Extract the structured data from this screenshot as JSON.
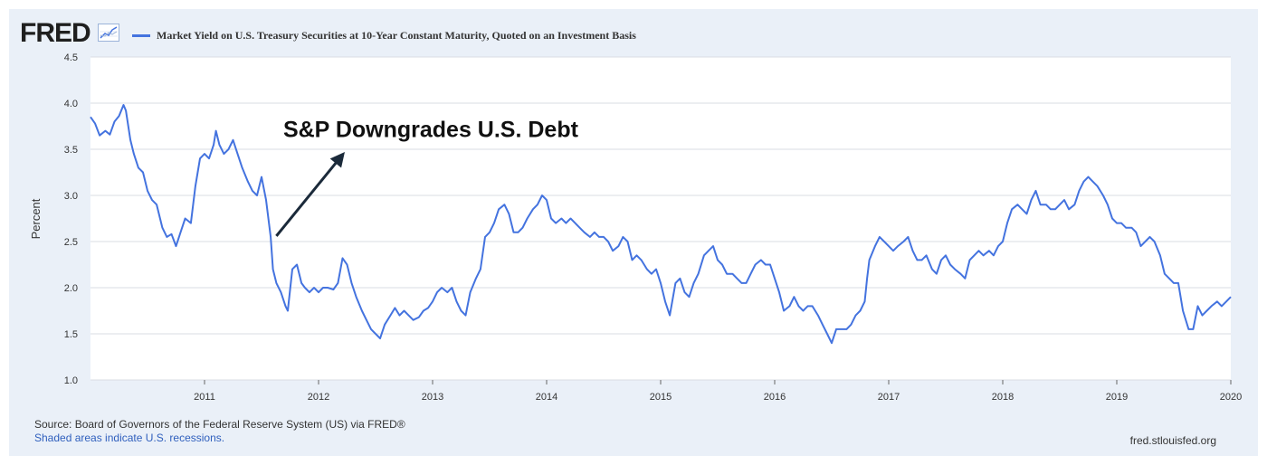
{
  "header": {
    "logo_text": "FRED",
    "logo_icon": "line-chart-icon"
  },
  "colors": {
    "series": "#4473df",
    "plot_background": "#ffffff",
    "frame_background": "#eaf0f8",
    "gridline": "#d9dde3",
    "annotation": "#1b2a3a"
  },
  "footer": {
    "source": "Source: Board of Governors of the Federal Reserve System (US) via FRED®",
    "recession_note": "Shaded areas indicate U.S. recessions.",
    "url": "fred.stlouisfed.org"
  },
  "chart_data": {
    "type": "line",
    "ylabel": "Percent",
    "xlim": [
      2010.0,
      2020.0
    ],
    "ylim": [
      1.0,
      4.5
    ],
    "grid": true,
    "legend_position": "top-left",
    "x_ticks": [
      "2011",
      "2012",
      "2013",
      "2014",
      "2015",
      "2016",
      "2017",
      "2018",
      "2019",
      "2020"
    ],
    "y_ticks": [
      "1.0",
      "1.5",
      "2.0",
      "2.5",
      "3.0",
      "3.5",
      "4.0",
      "4.5"
    ],
    "series": [
      {
        "name": "Market Yield on U.S. Treasury Securities at 10-Year Constant Maturity, Quoted on an Investment Basis",
        "color": "#4473df",
        "points": [
          [
            2010.0,
            3.85
          ],
          [
            2010.04,
            3.78
          ],
          [
            2010.08,
            3.65
          ],
          [
            2010.13,
            3.7
          ],
          [
            2010.17,
            3.66
          ],
          [
            2010.21,
            3.8
          ],
          [
            2010.25,
            3.86
          ],
          [
            2010.29,
            3.98
          ],
          [
            2010.31,
            3.92
          ],
          [
            2010.35,
            3.6
          ],
          [
            2010.38,
            3.45
          ],
          [
            2010.42,
            3.3
          ],
          [
            2010.46,
            3.25
          ],
          [
            2010.5,
            3.05
          ],
          [
            2010.54,
            2.95
          ],
          [
            2010.58,
            2.9
          ],
          [
            2010.63,
            2.65
          ],
          [
            2010.67,
            2.55
          ],
          [
            2010.71,
            2.58
          ],
          [
            2010.75,
            2.45
          ],
          [
            2010.79,
            2.6
          ],
          [
            2010.83,
            2.75
          ],
          [
            2010.88,
            2.7
          ],
          [
            2010.92,
            3.1
          ],
          [
            2010.96,
            3.4
          ],
          [
            2011.0,
            3.45
          ],
          [
            2011.04,
            3.4
          ],
          [
            2011.08,
            3.55
          ],
          [
            2011.1,
            3.7
          ],
          [
            2011.13,
            3.55
          ],
          [
            2011.17,
            3.45
          ],
          [
            2011.21,
            3.5
          ],
          [
            2011.25,
            3.6
          ],
          [
            2011.29,
            3.45
          ],
          [
            2011.33,
            3.3
          ],
          [
            2011.38,
            3.15
          ],
          [
            2011.42,
            3.05
          ],
          [
            2011.46,
            3.0
          ],
          [
            2011.5,
            3.2
          ],
          [
            2011.54,
            2.95
          ],
          [
            2011.58,
            2.55
          ],
          [
            2011.6,
            2.2
          ],
          [
            2011.63,
            2.05
          ],
          [
            2011.67,
            1.95
          ],
          [
            2011.71,
            1.8
          ],
          [
            2011.73,
            1.75
          ],
          [
            2011.77,
            2.2
          ],
          [
            2011.81,
            2.25
          ],
          [
            2011.85,
            2.05
          ],
          [
            2011.88,
            2.0
          ],
          [
            2011.92,
            1.95
          ],
          [
            2011.96,
            2.0
          ],
          [
            2012.0,
            1.95
          ],
          [
            2012.04,
            2.0
          ],
          [
            2012.08,
            2.0
          ],
          [
            2012.13,
            1.98
          ],
          [
            2012.17,
            2.05
          ],
          [
            2012.21,
            2.32
          ],
          [
            2012.25,
            2.25
          ],
          [
            2012.29,
            2.05
          ],
          [
            2012.33,
            1.9
          ],
          [
            2012.38,
            1.75
          ],
          [
            2012.42,
            1.65
          ],
          [
            2012.46,
            1.55
          ],
          [
            2012.5,
            1.5
          ],
          [
            2012.54,
            1.45
          ],
          [
            2012.58,
            1.6
          ],
          [
            2012.63,
            1.7
          ],
          [
            2012.67,
            1.78
          ],
          [
            2012.71,
            1.7
          ],
          [
            2012.75,
            1.75
          ],
          [
            2012.79,
            1.7
          ],
          [
            2012.83,
            1.65
          ],
          [
            2012.88,
            1.68
          ],
          [
            2012.92,
            1.75
          ],
          [
            2012.96,
            1.78
          ],
          [
            2013.0,
            1.85
          ],
          [
            2013.04,
            1.95
          ],
          [
            2013.08,
            2.0
          ],
          [
            2013.13,
            1.95
          ],
          [
            2013.17,
            2.0
          ],
          [
            2013.21,
            1.85
          ],
          [
            2013.25,
            1.75
          ],
          [
            2013.29,
            1.7
          ],
          [
            2013.33,
            1.95
          ],
          [
            2013.38,
            2.1
          ],
          [
            2013.42,
            2.2
          ],
          [
            2013.46,
            2.55
          ],
          [
            2013.5,
            2.6
          ],
          [
            2013.54,
            2.7
          ],
          [
            2013.58,
            2.85
          ],
          [
            2013.63,
            2.9
          ],
          [
            2013.67,
            2.8
          ],
          [
            2013.71,
            2.6
          ],
          [
            2013.75,
            2.6
          ],
          [
            2013.79,
            2.65
          ],
          [
            2013.83,
            2.75
          ],
          [
            2013.88,
            2.85
          ],
          [
            2013.92,
            2.9
          ],
          [
            2013.96,
            3.0
          ],
          [
            2014.0,
            2.95
          ],
          [
            2014.04,
            2.75
          ],
          [
            2014.08,
            2.7
          ],
          [
            2014.13,
            2.75
          ],
          [
            2014.17,
            2.7
          ],
          [
            2014.21,
            2.75
          ],
          [
            2014.25,
            2.7
          ],
          [
            2014.29,
            2.65
          ],
          [
            2014.33,
            2.6
          ],
          [
            2014.38,
            2.55
          ],
          [
            2014.42,
            2.6
          ],
          [
            2014.46,
            2.55
          ],
          [
            2014.5,
            2.55
          ],
          [
            2014.54,
            2.5
          ],
          [
            2014.58,
            2.4
          ],
          [
            2014.63,
            2.45
          ],
          [
            2014.67,
            2.55
          ],
          [
            2014.71,
            2.5
          ],
          [
            2014.75,
            2.3
          ],
          [
            2014.79,
            2.35
          ],
          [
            2014.83,
            2.3
          ],
          [
            2014.88,
            2.2
          ],
          [
            2014.92,
            2.15
          ],
          [
            2014.96,
            2.2
          ],
          [
            2015.0,
            2.05
          ],
          [
            2015.04,
            1.85
          ],
          [
            2015.08,
            1.7
          ],
          [
            2015.13,
            2.05
          ],
          [
            2015.17,
            2.1
          ],
          [
            2015.21,
            1.95
          ],
          [
            2015.25,
            1.9
          ],
          [
            2015.29,
            2.05
          ],
          [
            2015.33,
            2.15
          ],
          [
            2015.38,
            2.35
          ],
          [
            2015.42,
            2.4
          ],
          [
            2015.46,
            2.45
          ],
          [
            2015.5,
            2.3
          ],
          [
            2015.54,
            2.25
          ],
          [
            2015.58,
            2.15
          ],
          [
            2015.63,
            2.15
          ],
          [
            2015.67,
            2.1
          ],
          [
            2015.71,
            2.05
          ],
          [
            2015.75,
            2.05
          ],
          [
            2015.79,
            2.15
          ],
          [
            2015.83,
            2.25
          ],
          [
            2015.88,
            2.3
          ],
          [
            2015.92,
            2.25
          ],
          [
            2015.96,
            2.25
          ],
          [
            2016.0,
            2.1
          ],
          [
            2016.04,
            1.95
          ],
          [
            2016.08,
            1.75
          ],
          [
            2016.13,
            1.8
          ],
          [
            2016.17,
            1.9
          ],
          [
            2016.21,
            1.8
          ],
          [
            2016.25,
            1.75
          ],
          [
            2016.29,
            1.8
          ],
          [
            2016.33,
            1.8
          ],
          [
            2016.38,
            1.7
          ],
          [
            2016.42,
            1.6
          ],
          [
            2016.46,
            1.5
          ],
          [
            2016.5,
            1.4
          ],
          [
            2016.54,
            1.55
          ],
          [
            2016.58,
            1.55
          ],
          [
            2016.63,
            1.55
          ],
          [
            2016.67,
            1.6
          ],
          [
            2016.71,
            1.7
          ],
          [
            2016.75,
            1.75
          ],
          [
            2016.79,
            1.85
          ],
          [
            2016.81,
            2.1
          ],
          [
            2016.83,
            2.3
          ],
          [
            2016.88,
            2.45
          ],
          [
            2016.92,
            2.55
          ],
          [
            2016.96,
            2.5
          ],
          [
            2017.0,
            2.45
          ],
          [
            2017.04,
            2.4
          ],
          [
            2017.08,
            2.45
          ],
          [
            2017.13,
            2.5
          ],
          [
            2017.17,
            2.55
          ],
          [
            2017.21,
            2.4
          ],
          [
            2017.25,
            2.3
          ],
          [
            2017.29,
            2.3
          ],
          [
            2017.33,
            2.35
          ],
          [
            2017.38,
            2.2
          ],
          [
            2017.42,
            2.15
          ],
          [
            2017.46,
            2.3
          ],
          [
            2017.5,
            2.35
          ],
          [
            2017.54,
            2.25
          ],
          [
            2017.58,
            2.2
          ],
          [
            2017.63,
            2.15
          ],
          [
            2017.67,
            2.1
          ],
          [
            2017.71,
            2.3
          ],
          [
            2017.75,
            2.35
          ],
          [
            2017.79,
            2.4
          ],
          [
            2017.83,
            2.35
          ],
          [
            2017.88,
            2.4
          ],
          [
            2017.92,
            2.35
          ],
          [
            2017.96,
            2.45
          ],
          [
            2018.0,
            2.5
          ],
          [
            2018.04,
            2.7
          ],
          [
            2018.08,
            2.85
          ],
          [
            2018.13,
            2.9
          ],
          [
            2018.17,
            2.85
          ],
          [
            2018.21,
            2.8
          ],
          [
            2018.25,
            2.95
          ],
          [
            2018.29,
            3.05
          ],
          [
            2018.33,
            2.9
          ],
          [
            2018.38,
            2.9
          ],
          [
            2018.42,
            2.85
          ],
          [
            2018.46,
            2.85
          ],
          [
            2018.5,
            2.9
          ],
          [
            2018.54,
            2.95
          ],
          [
            2018.58,
            2.85
          ],
          [
            2018.63,
            2.9
          ],
          [
            2018.67,
            3.05
          ],
          [
            2018.71,
            3.15
          ],
          [
            2018.75,
            3.2
          ],
          [
            2018.79,
            3.15
          ],
          [
            2018.83,
            3.1
          ],
          [
            2018.88,
            3.0
          ],
          [
            2018.92,
            2.9
          ],
          [
            2018.96,
            2.75
          ],
          [
            2019.0,
            2.7
          ],
          [
            2019.04,
            2.7
          ],
          [
            2019.08,
            2.65
          ],
          [
            2019.13,
            2.65
          ],
          [
            2019.17,
            2.6
          ],
          [
            2019.21,
            2.45
          ],
          [
            2019.25,
            2.5
          ],
          [
            2019.29,
            2.55
          ],
          [
            2019.33,
            2.5
          ],
          [
            2019.38,
            2.35
          ],
          [
            2019.42,
            2.15
          ],
          [
            2019.46,
            2.1
          ],
          [
            2019.5,
            2.05
          ],
          [
            2019.54,
            2.05
          ],
          [
            2019.58,
            1.75
          ],
          [
            2019.63,
            1.55
          ],
          [
            2019.67,
            1.55
          ],
          [
            2019.71,
            1.8
          ],
          [
            2019.75,
            1.7
          ],
          [
            2019.79,
            1.75
          ],
          [
            2019.83,
            1.8
          ],
          [
            2019.88,
            1.85
          ],
          [
            2019.92,
            1.8
          ],
          [
            2019.96,
            1.85
          ],
          [
            2020.0,
            1.9
          ]
        ]
      }
    ],
    "annotations": [
      {
        "text": "S&P Downgrades U.S. Debt",
        "arrow_from": [
          2011.63,
          2.56
        ],
        "arrow_to": [
          2012.23,
          3.47
        ],
        "text_anchor": [
          2011.69,
          3.63
        ]
      }
    ]
  }
}
